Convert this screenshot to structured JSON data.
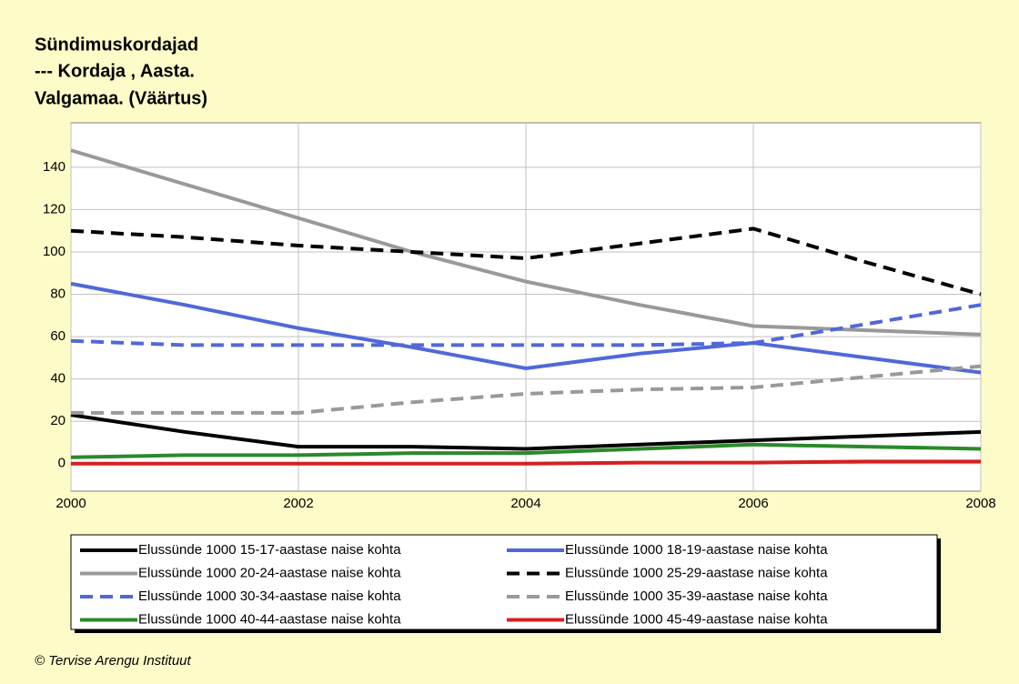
{
  "chart_data": {
    "type": "line",
    "title": [
      "Sündimuskordajad",
      "--- Kordaja , Aasta.",
      "Valgamaa. (Väärtus)"
    ],
    "footer": "© Tervise Arengu Instituut",
    "x": [
      2000,
      2001,
      2002,
      2003,
      2004,
      2005,
      2006,
      2007,
      2008
    ],
    "xlim": [
      2000,
      2008
    ],
    "xticks": [
      2000,
      2002,
      2004,
      2006,
      2008
    ],
    "ylim": [
      -13,
      161
    ],
    "yticks": [
      0,
      20,
      40,
      60,
      80,
      100,
      120,
      140
    ],
    "grid": true,
    "legend": "bottom",
    "series": [
      {
        "name": "Elussünde 1000 15-17-aastase naise kohta",
        "color": "#000000",
        "style": "solid",
        "values": [
          23,
          15,
          8,
          8,
          7,
          9,
          11,
          13,
          15
        ]
      },
      {
        "name": "Elussünde 1000 18-19-aastase naise kohta",
        "color": "#5068d8",
        "style": "solid",
        "values": [
          85,
          75,
          64,
          55,
          45,
          52,
          57,
          50,
          43
        ]
      },
      {
        "name": "Elussünde 1000 20-24-aastase naise kohta",
        "color": "#999999",
        "style": "solid",
        "values": [
          148,
          132,
          116,
          100,
          86,
          75,
          65,
          63,
          61
        ]
      },
      {
        "name": "Elussünde 1000 25-29-aastase naise kohta",
        "color": "#000000",
        "style": "dashed",
        "values": [
          110,
          107,
          103,
          100,
          97,
          104,
          111,
          95,
          80
        ]
      },
      {
        "name": "Elussünde 1000 30-34-aastase naise kohta",
        "color": "#5068d8",
        "style": "dashed",
        "values": [
          58,
          56,
          56,
          56,
          56,
          56,
          57,
          66,
          75
        ]
      },
      {
        "name": "Elussünde 1000 35-39-aastase naise kohta",
        "color": "#999999",
        "style": "dashed",
        "values": [
          24,
          24,
          24,
          29,
          33,
          35,
          36,
          41,
          46
        ]
      },
      {
        "name": "Elussünde 1000 40-44-aastase naise kohta",
        "color": "#2a8a2a",
        "style": "solid",
        "values": [
          3,
          4,
          4,
          5,
          5,
          7,
          9,
          8,
          7
        ]
      },
      {
        "name": "Elussünde 1000 45-49-aastase naise kohta",
        "color": "#d42020",
        "style": "solid",
        "values": [
          0,
          0,
          0,
          0,
          0,
          0.5,
          0.5,
          1,
          1
        ]
      }
    ]
  }
}
